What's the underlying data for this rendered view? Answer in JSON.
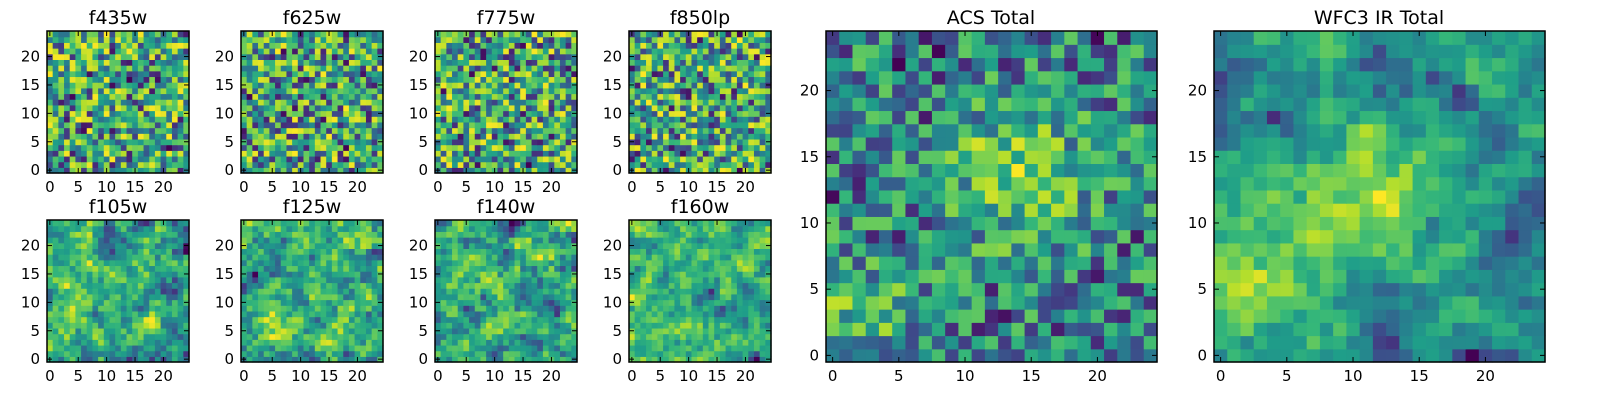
{
  "chart_data": [
    {
      "type": "heatmap",
      "title": "f435w",
      "grid_size": 25,
      "xlim": [
        0,
        24
      ],
      "ylim": [
        0,
        24
      ],
      "xticks": [
        "0",
        "5",
        "10",
        "15",
        "20"
      ],
      "yticks": [
        "0",
        "5",
        "10",
        "15",
        "20"
      ],
      "colormap": "viridis",
      "seed": 11,
      "smooth": 0
    },
    {
      "type": "heatmap",
      "title": "f625w",
      "grid_size": 25,
      "xlim": [
        0,
        24
      ],
      "ylim": [
        0,
        24
      ],
      "xticks": [
        "0",
        "5",
        "10",
        "15",
        "20"
      ],
      "yticks": [
        "0",
        "5",
        "10",
        "15",
        "20"
      ],
      "colormap": "viridis",
      "seed": 23,
      "smooth": 0
    },
    {
      "type": "heatmap",
      "title": "f775w",
      "grid_size": 25,
      "xlim": [
        0,
        24
      ],
      "ylim": [
        0,
        24
      ],
      "xticks": [
        "0",
        "5",
        "10",
        "15",
        "20"
      ],
      "yticks": [
        "0",
        "5",
        "10",
        "15",
        "20"
      ],
      "colormap": "viridis",
      "seed": 37,
      "smooth": 0
    },
    {
      "type": "heatmap",
      "title": "f850lp",
      "grid_size": 25,
      "xlim": [
        0,
        24
      ],
      "ylim": [
        0,
        24
      ],
      "xticks": [
        "0",
        "5",
        "10",
        "15",
        "20"
      ],
      "yticks": [
        "0",
        "5",
        "10",
        "15",
        "20"
      ],
      "colormap": "viridis",
      "seed": 41,
      "smooth": 0
    },
    {
      "type": "heatmap",
      "title": "f105w",
      "grid_size": 25,
      "xlim": [
        0,
        24
      ],
      "ylim": [
        0,
        24
      ],
      "xticks": [
        "0",
        "5",
        "10",
        "15",
        "20"
      ],
      "yticks": [
        "0",
        "5",
        "10",
        "15",
        "20"
      ],
      "colormap": "viridis",
      "seed": 53,
      "smooth": 1
    },
    {
      "type": "heatmap",
      "title": "f125w",
      "grid_size": 25,
      "xlim": [
        0,
        24
      ],
      "ylim": [
        0,
        24
      ],
      "xticks": [
        "0",
        "5",
        "10",
        "15",
        "20"
      ],
      "yticks": [
        "0",
        "5",
        "10",
        "15",
        "20"
      ],
      "colormap": "viridis",
      "seed": 67,
      "smooth": 1
    },
    {
      "type": "heatmap",
      "title": "f140w",
      "grid_size": 25,
      "xlim": [
        0,
        24
      ],
      "ylim": [
        0,
        24
      ],
      "xticks": [
        "0",
        "5",
        "10",
        "15",
        "20"
      ],
      "yticks": [
        "0",
        "5",
        "10",
        "15",
        "20"
      ],
      "colormap": "viridis",
      "seed": 71,
      "smooth": 1
    },
    {
      "type": "heatmap",
      "title": "f160w",
      "grid_size": 25,
      "xlim": [
        0,
        24
      ],
      "ylim": [
        0,
        24
      ],
      "xticks": [
        "0",
        "5",
        "10",
        "15",
        "20"
      ],
      "yticks": [
        "0",
        "5",
        "10",
        "15",
        "20"
      ],
      "colormap": "viridis",
      "seed": 83,
      "smooth": 1
    },
    {
      "type": "heatmap",
      "title": "ACS Total",
      "grid_size": 25,
      "xlim": [
        0,
        24
      ],
      "ylim": [
        0,
        24
      ],
      "xticks": [
        "0",
        "5",
        "10",
        "15",
        "20"
      ],
      "yticks": [
        "0",
        "5",
        "10",
        "15",
        "20"
      ],
      "colormap": "viridis",
      "seed": 97,
      "smooth": 0,
      "blobs": [
        [
          14,
          14,
          3.5,
          0.55
        ],
        [
          2,
          3,
          3,
          0.35
        ]
      ]
    },
    {
      "type": "heatmap",
      "title": "WFC3 IR Total",
      "grid_size": 25,
      "xlim": [
        0,
        24
      ],
      "ylim": [
        0,
        24
      ],
      "xticks": [
        "0",
        "5",
        "10",
        "15",
        "20"
      ],
      "yticks": [
        "0",
        "5",
        "10",
        "15",
        "20"
      ],
      "colormap": "viridis",
      "seed": 101,
      "smooth": 1,
      "blobs": [
        [
          12,
          12,
          3.5,
          0.5
        ],
        [
          1,
          6,
          3,
          0.5
        ]
      ]
    }
  ]
}
